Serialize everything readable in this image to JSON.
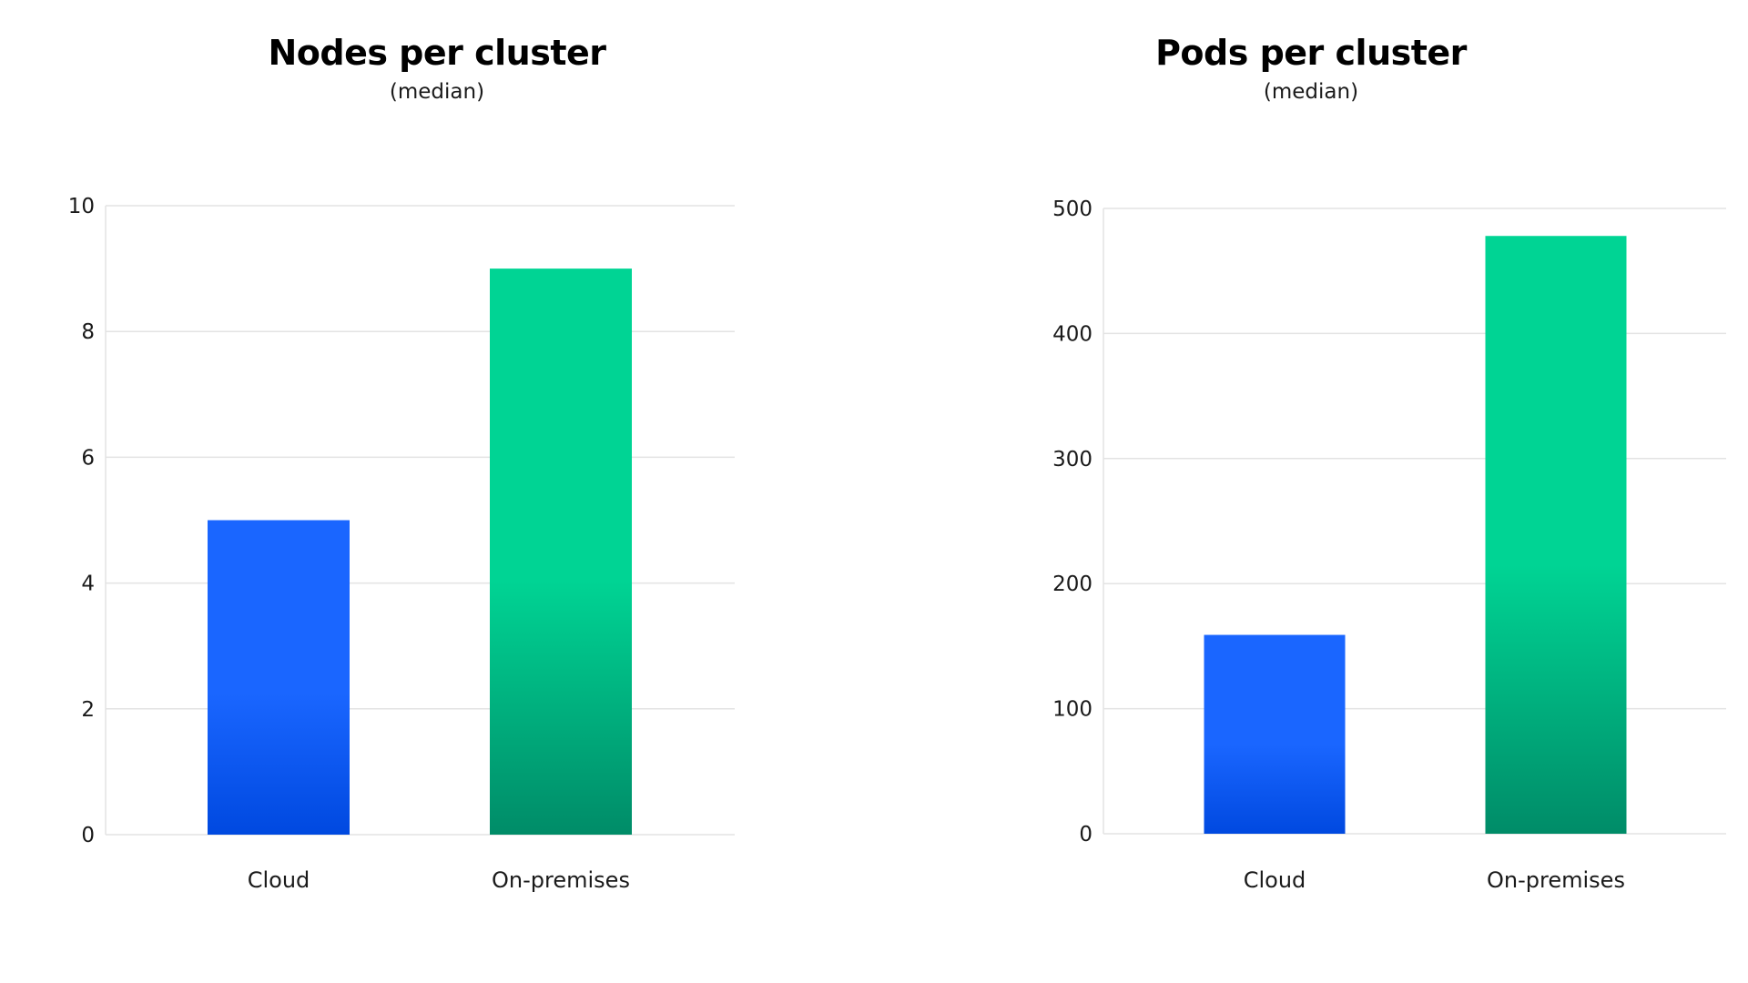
{
  "colors": {
    "cloud_top": "#1a66ff",
    "cloud_bottom": "#0049e0",
    "onprem_top": "#00d494",
    "onprem_bottom": "#008c68",
    "grid": "#e3e3e3"
  },
  "chart_data": [
    {
      "type": "bar",
      "title": "Nodes per cluster",
      "subtitle": "(median)",
      "categories": [
        "Cloud",
        "On-premises"
      ],
      "values": [
        5,
        9
      ],
      "ylim": [
        0,
        10
      ],
      "yticks": [
        0,
        2,
        4,
        6,
        8,
        10
      ],
      "xlabel": "",
      "ylabel": "",
      "grid": true,
      "legend": "none"
    },
    {
      "type": "bar",
      "title": "Pods per cluster",
      "subtitle": "(median)",
      "categories": [
        "Cloud",
        "On-premises"
      ],
      "values": [
        159,
        478
      ],
      "ylim": [
        0,
        500
      ],
      "yticks": [
        0,
        100,
        200,
        300,
        400,
        500
      ],
      "xlabel": "",
      "ylabel": "",
      "grid": true,
      "legend": "none"
    }
  ]
}
